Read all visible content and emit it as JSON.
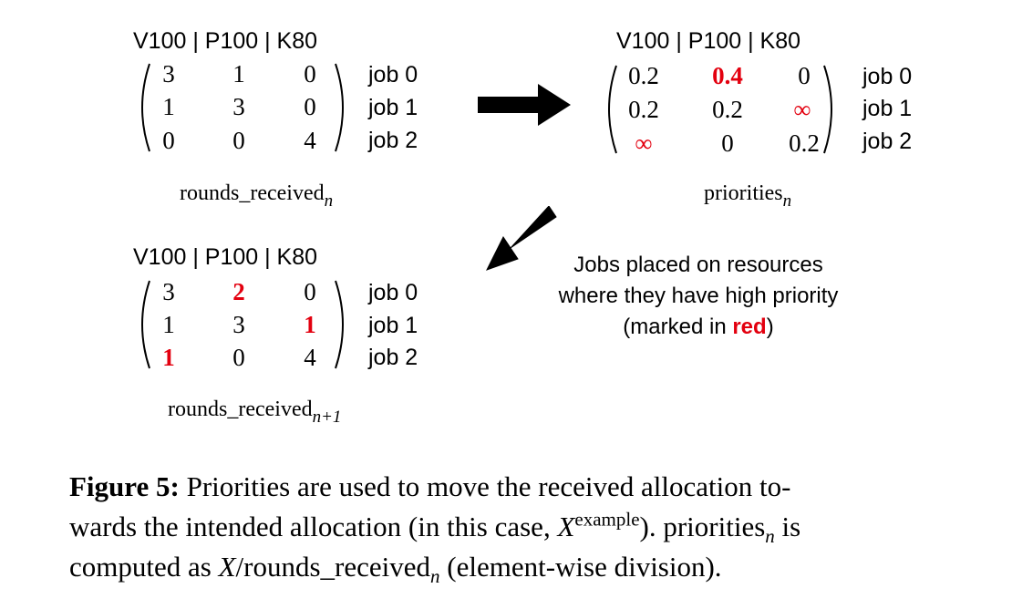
{
  "matrix_top_left": {
    "header": "V100 | P100 | K80",
    "rows": [
      [
        "3",
        "1",
        "0"
      ],
      [
        "1",
        "3",
        "0"
      ],
      [
        "0",
        "0",
        "4"
      ]
    ],
    "job_labels": [
      "job 0",
      "job 1",
      "job 2"
    ],
    "label_main": "rounds_received",
    "label_sub": "n"
  },
  "matrix_top_right": {
    "header": "V100 | P100 | K80",
    "rows": [
      [
        "0.2",
        "0.4",
        "0"
      ],
      [
        "0.2",
        "0.2",
        "∞"
      ],
      [
        "∞",
        "0",
        "0.2"
      ]
    ],
    "job_labels": [
      "job 0",
      "job 1",
      "job 2"
    ],
    "label_main": "priorities",
    "label_sub": "n"
  },
  "matrix_bottom_left": {
    "header": "V100 | P100 | K80",
    "rows": [
      [
        "3",
        "2",
        "0"
      ],
      [
        "1",
        "3",
        "1"
      ],
      [
        "1",
        "0",
        "4"
      ]
    ],
    "job_labels": [
      "job 0",
      "job 1",
      "job 2"
    ],
    "label_main": "rounds_received",
    "label_sub": "n+1"
  },
  "note": {
    "line1": "Jobs placed on resources",
    "line2": "where they have high priority",
    "line3_prefix": "(marked in ",
    "line3_highlight": "red",
    "line3_suffix": ")"
  },
  "caption": {
    "figure_label": "Figure 5:",
    "text1": " Priorities are used to move the received allocation to-",
    "text2": "wards the intended allocation (in this case, ",
    "x_symbol": "X",
    "x_superscript": "example",
    "text3": "). priorities",
    "sub_n": "n",
    "text4": " is",
    "text5": "computed as ",
    "text6": "/rounds_received",
    "text7": " (element-wise division)."
  },
  "colors": {
    "highlight": "#e3000f",
    "text": "#000000"
  },
  "icons": [
    "arrow-right-icon",
    "arrow-down-left-icon"
  ]
}
